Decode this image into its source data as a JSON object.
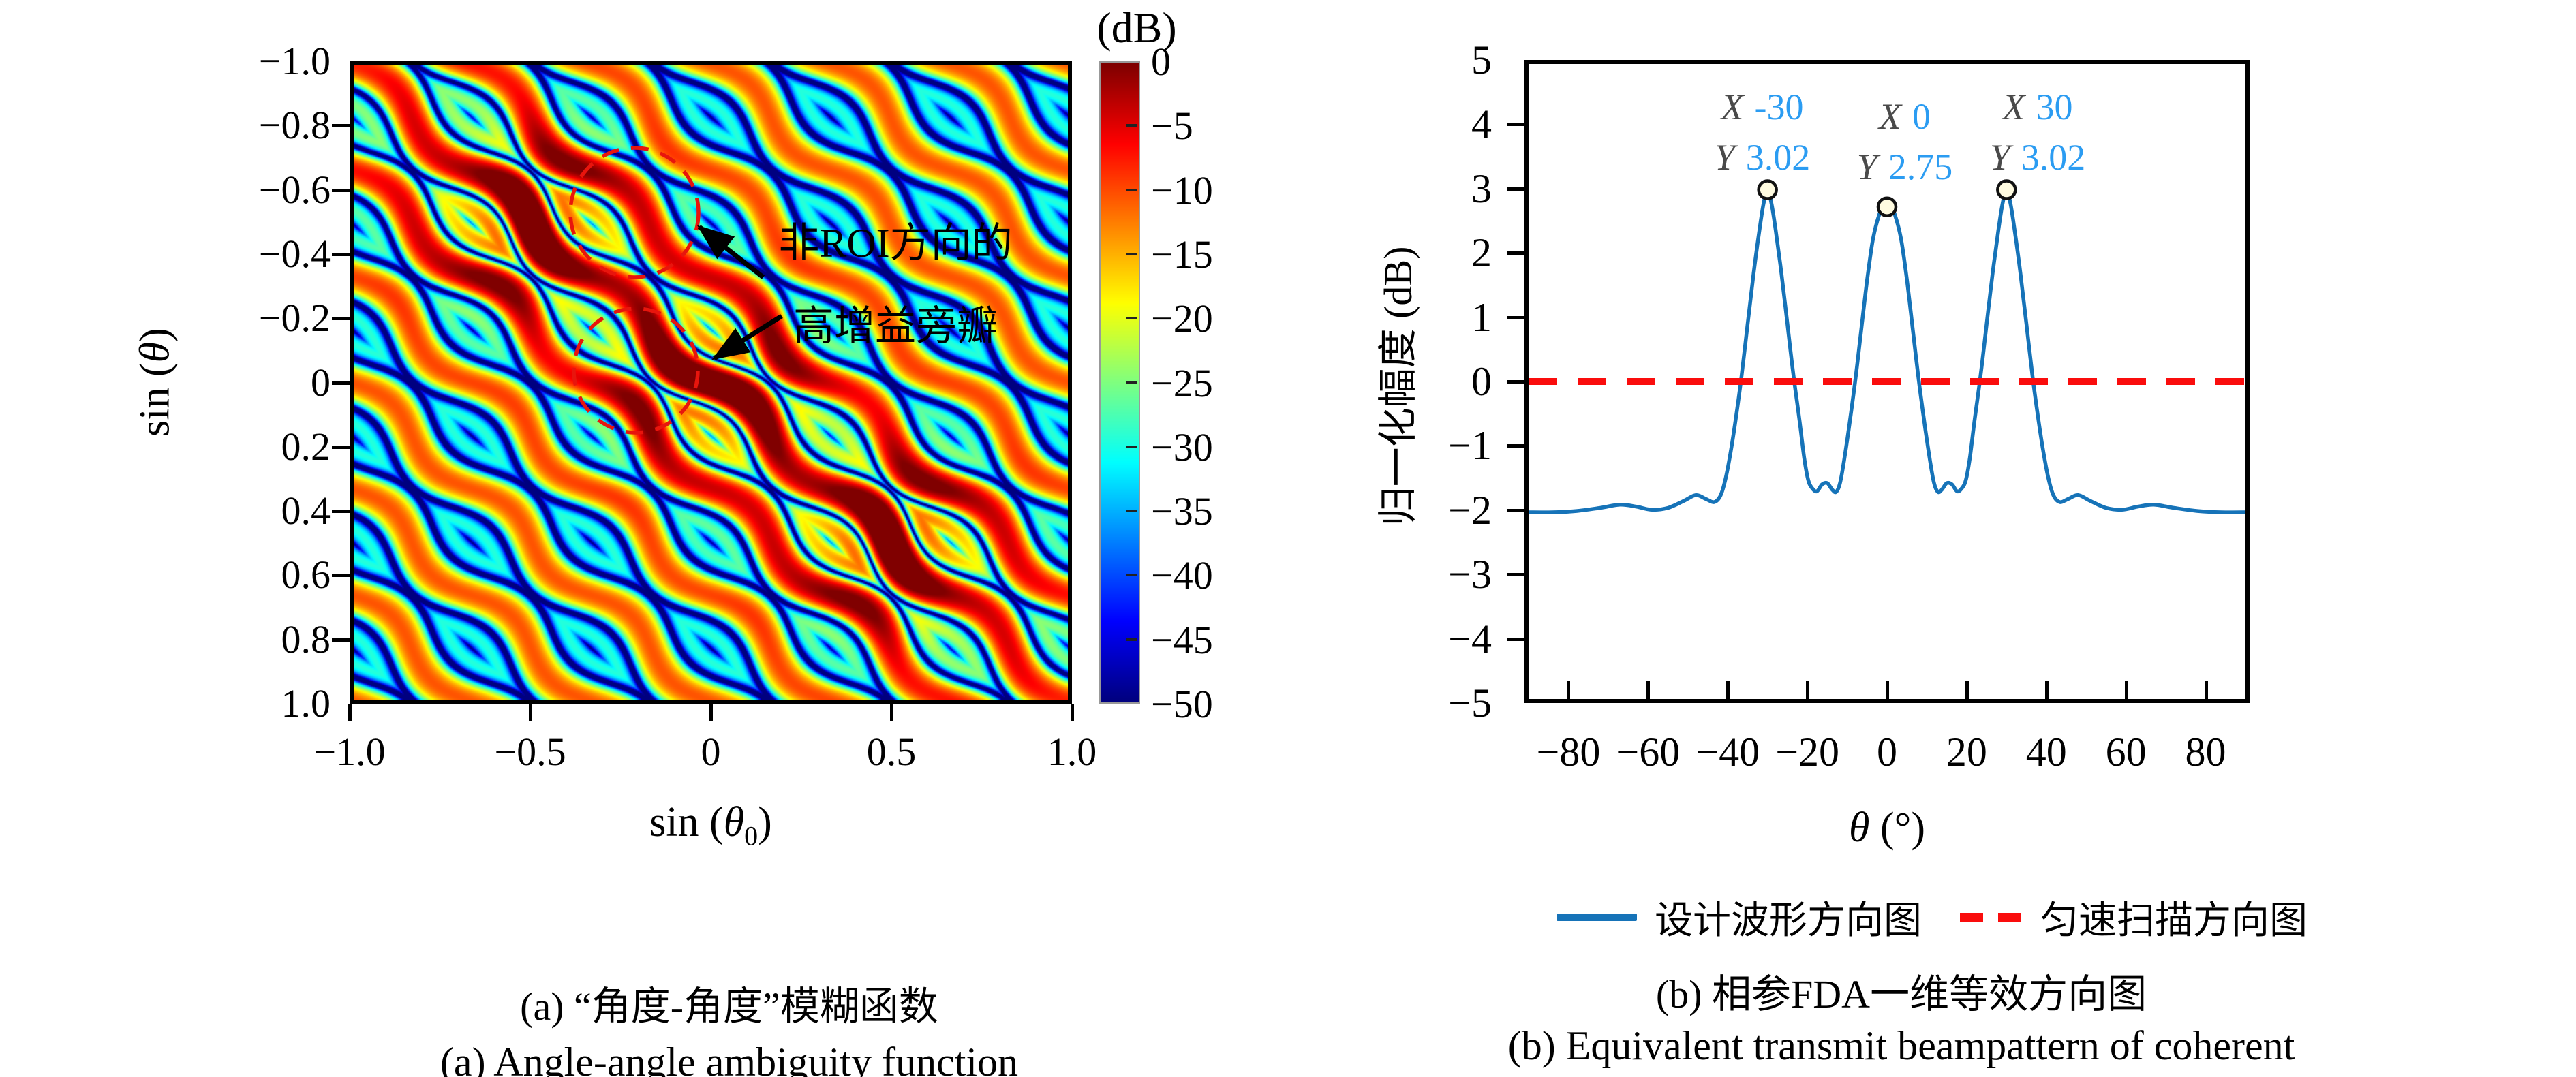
{
  "figure_background": "#ffffff",
  "colors": {
    "curve_blue": "#1673b8",
    "datatip_value_blue": "#2b9cf2",
    "datatip_letter_gray": "#4a4a4a",
    "reference_red": "#fa0d0d",
    "annotation_circle_red": "#e8150d",
    "marker_fill": "#fffbe0",
    "axis_black": "#000000"
  },
  "panel_a": {
    "ylabel_pre": "sin (",
    "ylabel_theta": "θ",
    "ylabel_post": ")",
    "xlabel_pre": "sin (",
    "xlabel_theta": "θ",
    "xlabel_sub": "0",
    "xlabel_post": ")",
    "y_ticks": [
      "−1.0",
      "−0.8",
      "−0.6",
      "−0.4",
      "−0.2",
      "0",
      "0.2",
      "0.4",
      "0.6",
      "0.8",
      "1.0"
    ],
    "x_ticks": [
      "−1.0",
      "−0.5",
      "0",
      "0.5",
      "1.0"
    ],
    "colorbar": {
      "title": "(dB)",
      "ticks": [
        "0",
        "−5",
        "−10",
        "−15",
        "−20",
        "−25",
        "−30",
        "−35",
        "−40",
        "−45",
        "−50"
      ]
    },
    "annotation": {
      "line1": "非ROI方向的",
      "line2": "高增益旁瓣"
    },
    "caption_zh": "(a) “角度-角度”模糊函数",
    "caption_en": "(a) Angle-angle ambiguity function"
  },
  "panel_b": {
    "y_ticks": [
      "5",
      "4",
      "3",
      "2",
      "1",
      "0",
      "−1",
      "−2",
      "−3",
      "−4",
      "−5"
    ],
    "x_ticks": [
      "−80",
      "−60",
      "−40",
      "−20",
      "0",
      "20",
      "40",
      "60",
      "80"
    ],
    "ylabel": "归一化幅度 (dB)",
    "xlabel_theta": "θ",
    "xlabel_unit": " (°)",
    "datatips": [
      {
        "x_label": "X",
        "x_value": "-30",
        "y_label": "Y",
        "y_value": "3.02"
      },
      {
        "x_label": "X",
        "x_value": "0",
        "y_label": "Y",
        "y_value": "2.75"
      },
      {
        "x_label": "X",
        "x_value": "30",
        "y_label": "Y",
        "y_value": "3.02"
      }
    ],
    "legend": [
      {
        "label": "设计波形方向图",
        "style": "solid",
        "color": "#1673b8"
      },
      {
        "label": "匀速扫描方向图",
        "style": "dashed",
        "color": "#fa0d0d"
      }
    ],
    "caption_zh": "(b) 相参FDA一维等效方向图",
    "caption_en": "(b) Equivalent transmit beampattern of coherent FDA"
  },
  "chart_data": [
    {
      "type": "heatmap",
      "title": "angle-angle ambiguity function",
      "xlabel": "sin(θ0)",
      "ylabel": "sin(θ)",
      "xlim": [
        -1,
        1
      ],
      "ylim_top_to_bottom": [
        -1,
        1
      ],
      "x_ticks": [
        -1.0,
        -0.5,
        0,
        0.5,
        1.0
      ],
      "y_ticks": [
        -1.0,
        -0.8,
        -0.6,
        -0.4,
        -0.2,
        0,
        0.2,
        0.4,
        0.6,
        0.8,
        1.0
      ],
      "colorbar_label": "(dB)",
      "colorbar_ticks": [
        0,
        -5,
        -10,
        -15,
        -20,
        -25,
        -30,
        -35,
        -40,
        -45,
        -50
      ],
      "value_range_db": [
        -50,
        0
      ],
      "colormap": "jet",
      "pattern": {
        "description": "periodic diagonal ridges parallel to the line sin(θ)=sin(θ0) with braided wavy nulls; strong mainlobe ridge along the diagonal with dark-red hotspots",
        "ridge_period_in_v": 0.335,
        "braid_period_in_s": 0.67,
        "braid_amplitude_rad": 0.45,
        "hotspots": [
          [
            -0.5,
            -0.5
          ],
          [
            0.0,
            0.0
          ],
          [
            0.5,
            0.5
          ]
        ],
        "hotspot_sigma": 0.17,
        "hotspot_gain": 1.35,
        "envelope_base": 0.55,
        "envelope_peak": 0.2,
        "envelope_sigma": 0.45,
        "db_exponent": 40
      },
      "annotation_circles_data_xy": [
        [
          -0.22,
          -0.53
        ],
        [
          -0.21,
          -0.04
        ]
      ]
    },
    {
      "type": "line",
      "xlabel": "θ (°)",
      "ylabel": "归一化幅度 (dB)",
      "xlim": [
        -90,
        90
      ],
      "ylim": [
        -5,
        5
      ],
      "x_ticks": [
        -80,
        -60,
        -40,
        -20,
        0,
        20,
        40,
        60,
        80
      ],
      "y_ticks": [
        5,
        4,
        3,
        2,
        1,
        0,
        -1,
        -2,
        -3,
        -4,
        -5
      ],
      "grid": false,
      "legend_position": "below",
      "series": [
        {
          "name": "设计波形方向图",
          "color": "#1673b8",
          "style": "solid",
          "points": [
            [
              -90,
              -2.06
            ],
            [
              -84,
              -2.06
            ],
            [
              -78,
              -2.04
            ],
            [
              -72,
              -1.99
            ],
            [
              -67,
              -1.94
            ],
            [
              -63,
              -1.97
            ],
            [
              -59,
              -2.02
            ],
            [
              -55,
              -1.99
            ],
            [
              -51,
              -1.88
            ],
            [
              -48,
              -1.79
            ],
            [
              -45.5,
              -1.85
            ],
            [
              -43.5,
              -1.9
            ],
            [
              -42,
              -1.82
            ],
            [
              -40.8,
              -1.6
            ],
            [
              -39.5,
              -1.2
            ],
            [
              -38,
              -0.6
            ],
            [
              -36.5,
              0.1
            ],
            [
              -35,
              0.9
            ],
            [
              -33.5,
              1.7
            ],
            [
              -32,
              2.4
            ],
            [
              -31,
              2.8
            ],
            [
              -30,
              3.02
            ],
            [
              -29,
              2.8
            ],
            [
              -28,
              2.4
            ],
            [
              -26.5,
              1.7
            ],
            [
              -25,
              0.9
            ],
            [
              -23.5,
              0.1
            ],
            [
              -22,
              -0.6
            ],
            [
              -20.8,
              -1.2
            ],
            [
              -19.8,
              -1.55
            ],
            [
              -18.8,
              -1.68
            ],
            [
              -17.6,
              -1.73
            ],
            [
              -16.3,
              -1.62
            ],
            [
              -15,
              -1.6
            ],
            [
              -13.8,
              -1.7
            ],
            [
              -12.8,
              -1.74
            ],
            [
              -11.8,
              -1.6
            ],
            [
              -10.8,
              -1.25
            ],
            [
              -9.5,
              -0.7
            ],
            [
              -8,
              0
            ],
            [
              -6.5,
              0.8
            ],
            [
              -5,
              1.6
            ],
            [
              -3.5,
              2.25
            ],
            [
              -2,
              2.62
            ],
            [
              -1,
              2.72
            ],
            [
              0,
              2.75
            ],
            [
              1,
              2.72
            ],
            [
              2,
              2.62
            ],
            [
              3.5,
              2.25
            ],
            [
              5,
              1.6
            ],
            [
              6.5,
              0.8
            ],
            [
              8,
              0
            ],
            [
              9.5,
              -0.7
            ],
            [
              10.8,
              -1.25
            ],
            [
              11.8,
              -1.6
            ],
            [
              12.8,
              -1.74
            ],
            [
              13.8,
              -1.7
            ],
            [
              15,
              -1.6
            ],
            [
              16.3,
              -1.62
            ],
            [
              17.6,
              -1.73
            ],
            [
              18.8,
              -1.68
            ],
            [
              19.8,
              -1.55
            ],
            [
              20.8,
              -1.2
            ],
            [
              22,
              -0.6
            ],
            [
              23.5,
              0.1
            ],
            [
              25,
              0.9
            ],
            [
              26.5,
              1.7
            ],
            [
              28,
              2.4
            ],
            [
              29,
              2.8
            ],
            [
              30,
              3.02
            ],
            [
              31,
              2.8
            ],
            [
              32,
              2.4
            ],
            [
              33.5,
              1.7
            ],
            [
              35,
              0.9
            ],
            [
              36.5,
              0.1
            ],
            [
              38,
              -0.6
            ],
            [
              39.5,
              -1.2
            ],
            [
              40.8,
              -1.6
            ],
            [
              42,
              -1.82
            ],
            [
              43.5,
              -1.9
            ],
            [
              45.5,
              -1.85
            ],
            [
              48,
              -1.79
            ],
            [
              51,
              -1.88
            ],
            [
              55,
              -1.99
            ],
            [
              59,
              -2.02
            ],
            [
              63,
              -1.97
            ],
            [
              67,
              -1.94
            ],
            [
              72,
              -1.99
            ],
            [
              78,
              -2.04
            ],
            [
              84,
              -2.06
            ],
            [
              90,
              -2.06
            ]
          ]
        },
        {
          "name": "匀速扫描方向图",
          "color": "#fa0d0d",
          "style": "dashed",
          "points": [
            [
              -90,
              0
            ],
            [
              90,
              0
            ]
          ]
        }
      ],
      "peak_markers": [
        {
          "x": -30,
          "y": 3.02
        },
        {
          "x": 0,
          "y": 2.75
        },
        {
          "x": 30,
          "y": 3.02
        }
      ]
    }
  ]
}
